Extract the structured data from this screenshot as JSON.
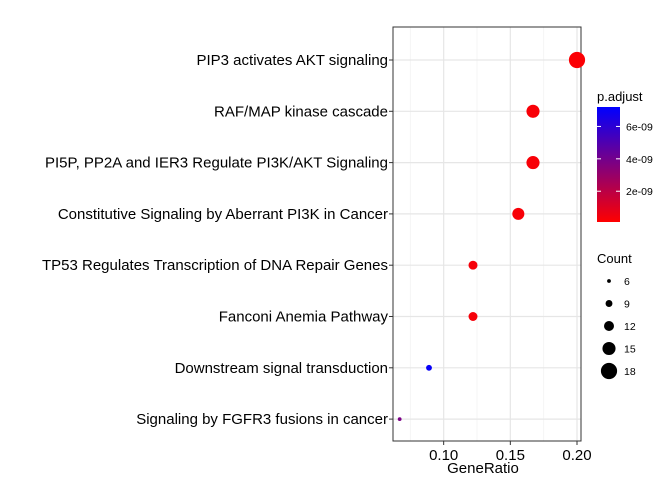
{
  "chart_data": {
    "type": "scatter",
    "xlabel": "GeneRatio",
    "ylabel": "",
    "title": "",
    "xlim": [
      0.062,
      0.203
    ],
    "x_ticks": [
      0.1,
      0.15,
      0.2
    ],
    "x_tick_labels": [
      "0.10",
      "0.15",
      "0.20"
    ],
    "grid": true,
    "categories": [
      "PIP3 activates AKT signaling",
      "RAF/MAP kinase cascade",
      "PI5P, PP2A and IER3 Regulate PI3K/AKT Signaling",
      "Constitutive Signaling by Aberrant PI3K in Cancer",
      "TP53 Regulates Transcription of DNA Repair Genes",
      "Fanconi Anemia Pathway",
      "Downstream signal transduction",
      "Signaling by FGFR3 fusions in cancer"
    ],
    "points": [
      {
        "term": "PIP3 activates AKT signaling",
        "gene_ratio": 0.2,
        "count": 18,
        "p_adjust": 2e-10
      },
      {
        "term": "RAF/MAP kinase cascade",
        "gene_ratio": 0.167,
        "count": 15,
        "p_adjust": 3e-10
      },
      {
        "term": "PI5P, PP2A and IER3 Regulate PI3K/AKT Signaling",
        "gene_ratio": 0.167,
        "count": 15,
        "p_adjust": 3e-10
      },
      {
        "term": "Constitutive Signaling by Aberrant PI3K in Cancer",
        "gene_ratio": 0.156,
        "count": 14,
        "p_adjust": 3e-10
      },
      {
        "term": "TP53 Regulates Transcription of DNA Repair Genes",
        "gene_ratio": 0.122,
        "count": 11,
        "p_adjust": 3.5e-10
      },
      {
        "term": "Fanconi Anemia Pathway",
        "gene_ratio": 0.122,
        "count": 11,
        "p_adjust": 3.5e-10
      },
      {
        "term": "Downstream signal transduction",
        "gene_ratio": 0.089,
        "count": 8,
        "p_adjust": 7e-09
      },
      {
        "term": "Signaling by FGFR3 fusions in cancer",
        "gene_ratio": 0.067,
        "count": 6,
        "p_adjust": 3.8e-09
      }
    ],
    "color_legend": {
      "title": "p.adjust",
      "range": [
        1e-10,
        7.2e-09
      ],
      "ticks": [
        2e-09,
        4e-09,
        6e-09
      ],
      "tick_labels": [
        "2e-09",
        "4e-09",
        "6e-09"
      ],
      "low_color": "#ff0000",
      "high_color": "#0000ff"
    },
    "size_legend": {
      "title": "Count",
      "values": [
        6,
        9,
        12,
        15,
        18
      ],
      "labels": [
        "6",
        "9",
        "12",
        "15",
        "18"
      ],
      "color": "#000000"
    },
    "legend_position": "right"
  }
}
